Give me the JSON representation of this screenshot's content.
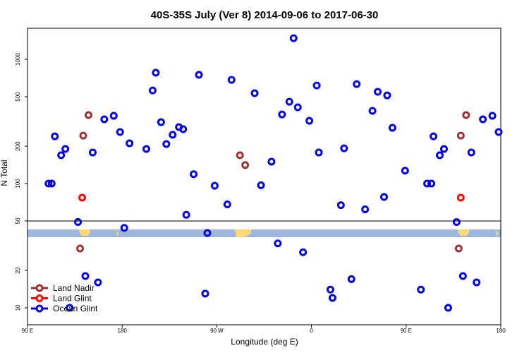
{
  "chart_data": {
    "type": "scatter",
    "title": "40S-35S July (Ver 8)   2014-09-06 to 2017-06-30",
    "x_label": "Longitude (deg E)",
    "y_label": "N Total",
    "log_y": true,
    "xlim": [
      90,
      540
    ],
    "ylim": [
      7.3,
      1780
    ],
    "xticks": [
      {
        "value": 90,
        "label": "90 E"
      },
      180,
      {
        "value": 270,
        "label": "90 W"
      },
      {
        "value": 360,
        "label": "0"
      },
      {
        "value": 450,
        "label": "90 E"
      },
      {
        "value": 540,
        "label": "180"
      }
    ],
    "yticks": [
      10,
      20,
      50,
      100,
      200,
      500,
      1000
    ],
    "reference_line": 50,
    "legend": "bottom-left",
    "series": [
      {
        "name": "Land Nadir",
        "color": "#993333",
        "x": [
          140,
          143,
          148,
          292,
          297,
          500,
          502,
          507
        ],
        "values": [
          30,
          243,
          356,
          169,
          141,
          30,
          243,
          356
        ]
      },
      {
        "name": "Land Glint",
        "color": "#ff0000",
        "x": [
          142,
          502
        ],
        "values": [
          77,
          77
        ]
      },
      {
        "name": "Ocean Glint",
        "color": "#0000dd",
        "x": [
          110,
          113,
          116,
          122,
          126,
          130,
          138,
          145,
          152,
          157,
          163,
          172,
          178,
          182,
          187,
          203,
          209,
          212,
          217,
          222,
          228,
          234,
          238,
          241,
          248,
          253,
          259,
          261,
          268,
          280,
          284,
          306,
          312,
          322,
          328,
          332,
          339,
          343,
          347,
          352,
          358,
          365,
          367,
          378,
          380,
          388,
          391,
          398,
          403,
          411,
          418,
          423,
          429,
          432,
          437,
          449,
          464,
          470,
          474,
          476,
          482,
          486,
          490,
          498,
          504,
          512,
          517,
          523,
          532,
          538
        ],
        "values": [
          100,
          100,
          240,
          169,
          190,
          10,
          49,
          18,
          178,
          16,
          329,
          351,
          260,
          44,
          211,
          190,
          562,
          780,
          312,
          208,
          247,
          285,
          274,
          56,
          119,
          750,
          13,
          40,
          96,
          68,
          684,
          534,
          97,
          150,
          33,
          360,
          456,
          1480,
          411,
          28,
          320,
          616,
          178,
          14,
          12,
          67,
          192,
          17,
          632,
          62,
          385,
          548,
          78,
          513,
          281,
          127,
          14,
          100,
          100,
          240,
          169,
          190,
          10,
          49,
          18,
          178,
          16,
          329,
          351,
          260
        ]
      }
    ]
  }
}
